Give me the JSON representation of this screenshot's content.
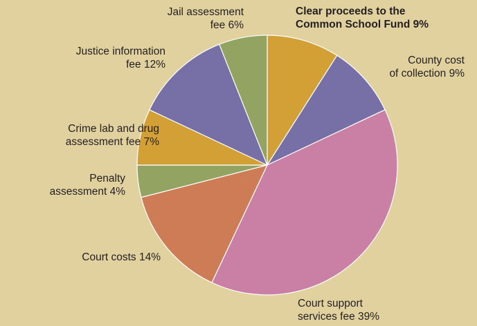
{
  "chart_data": {
    "type": "pie",
    "slices": [
      {
        "label_lines": [
          "Clear proceeds to the",
          "Common School Fund 9%"
        ],
        "value": 9,
        "color": "#d3a035",
        "bold": true
      },
      {
        "label_lines": [
          "County cost",
          "of collection 9%"
        ],
        "value": 9,
        "color": "#7770a6",
        "bold": false
      },
      {
        "label_lines": [
          "Court support",
          "services fee 39%"
        ],
        "value": 39,
        "color": "#ca80a5",
        "bold": false
      },
      {
        "label_lines": [
          "Court costs 14%"
        ],
        "value": 14,
        "color": "#cd7c56",
        "bold": false
      },
      {
        "label_lines": [
          "Penalty",
          "assessment 4%"
        ],
        "value": 4,
        "color": "#93a462",
        "bold": false
      },
      {
        "label_lines": [
          "Crime lab and drug",
          "assessment fee 7%"
        ],
        "value": 7,
        "color": "#d3a035",
        "bold": false
      },
      {
        "label_lines": [
          "Justice information",
          "fee 12%"
        ],
        "value": 12,
        "color": "#7770a6",
        "bold": false
      },
      {
        "label_lines": [
          "Jail assessment",
          "fee 6%"
        ],
        "value": 6,
        "color": "#93a462",
        "bold": false
      }
    ],
    "start_angle_deg": 0,
    "direction": "clockwise",
    "legend": "none"
  }
}
